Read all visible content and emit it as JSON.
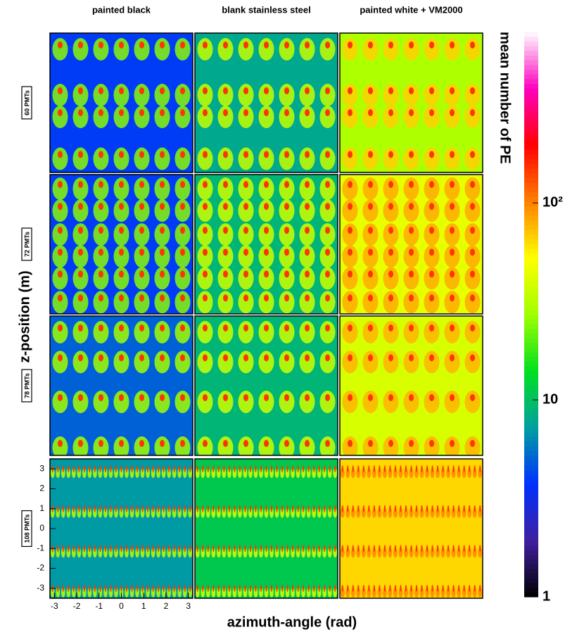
{
  "chart_data": {
    "type": "heatmap",
    "columns": [
      "painted black",
      "blank stainless steel",
      "painted white + VM2000"
    ],
    "xlabel": "azimuth-angle (rad)",
    "ylabel": "z-position (m)",
    "zlabel": "mean number of PE",
    "xlim": [
      -3.2,
      3.2
    ],
    "ylim": [
      -3.5,
      3.5
    ],
    "xticks": [
      -3,
      -2,
      -1,
      0,
      1,
      2,
      3
    ],
    "yticks": [
      3,
      2,
      1,
      0,
      -1,
      -2,
      -3
    ],
    "zlim": [
      1,
      740
    ],
    "zlog": true,
    "zticks": [
      1,
      10,
      {
        "value": 100,
        "label": "10²"
      }
    ],
    "colormap": [
      "#000000",
      "#4020a0",
      "#0030ff",
      "#00a0a0",
      "#00e020",
      "#a0ff00",
      "#ffff00",
      "#ff8000",
      "#ff0000",
      "#ff00c0",
      "#ffffff"
    ],
    "rows": [
      {
        "label": "60 PMTs",
        "spot_z": [
          2.9,
          0.6,
          -0.5,
          -2.6
        ],
        "spots_per_row": 7,
        "panels": [
          {
            "background": 4,
            "peak": 150
          },
          {
            "background": 8,
            "peak": 150
          },
          {
            "background": 30,
            "peak": 150
          }
        ]
      },
      {
        "label": "72 PMTs",
        "spot_z": [
          3.0,
          1.9,
          0.7,
          -0.4,
          -1.5,
          -2.7
        ],
        "spots_per_row": 7,
        "panels": [
          {
            "background": 4,
            "peak": 150
          },
          {
            "background": 9,
            "peak": 150
          },
          {
            "background": 45,
            "peak": 150
          }
        ]
      },
      {
        "label": "78 PMTs",
        "spot_z": [
          2.9,
          1.4,
          -0.6,
          -2.9
        ],
        "spots_per_row": 7,
        "panels": [
          {
            "background": 5,
            "peak": 150
          },
          {
            "background": 9,
            "peak": 150
          },
          {
            "background": 40,
            "peak": 150
          }
        ]
      },
      {
        "label": "108 PMTs",
        "spot_z": [
          3.0,
          1.0,
          -1.0,
          -3.0
        ],
        "spots_per_row": 27,
        "panels": [
          {
            "background": 7,
            "peak": 150
          },
          {
            "background": 11,
            "peak": 150
          },
          {
            "background": 65,
            "peak": 150
          }
        ]
      }
    ]
  }
}
